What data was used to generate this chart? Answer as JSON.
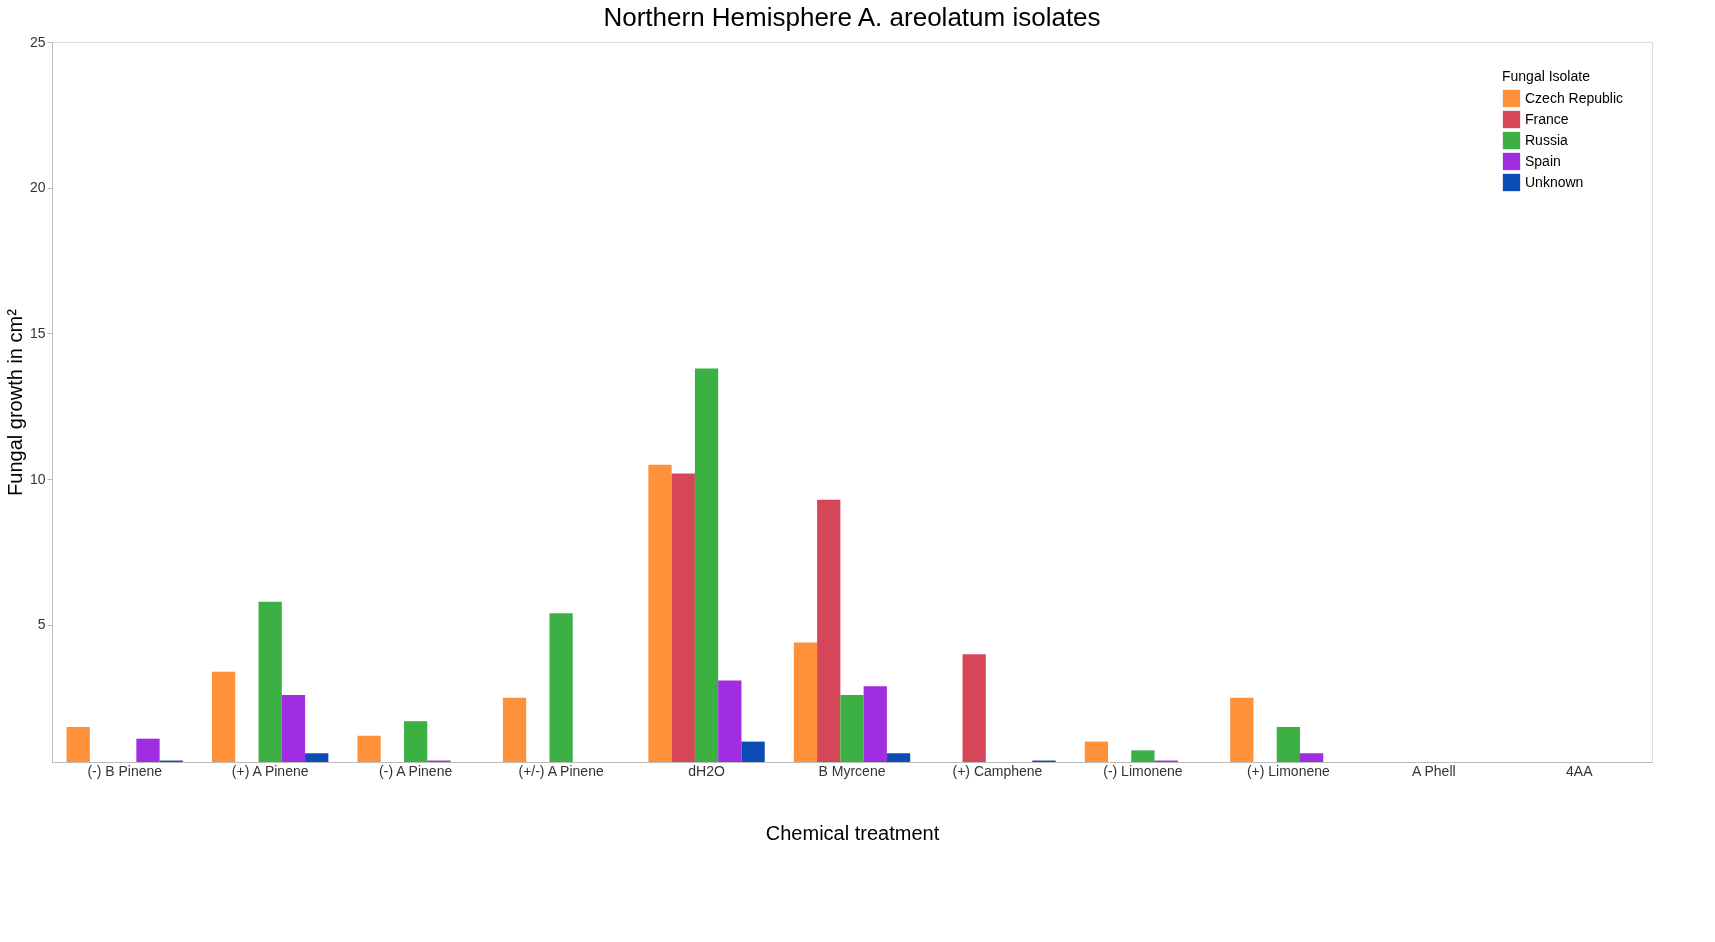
{
  "chart_data": {
    "type": "bar",
    "title": "Northern Hemisphere A. areolatum isolates",
    "xlabel": "Chemical treatment",
    "ylabel": "Fungal growth in cm²",
    "legend_title": "Fungal Isolate",
    "legend": "top right",
    "grid": false,
    "categories": [
      "(-) B Pinene",
      "(+) A Pinene",
      "(-) A Pinene",
      "(+/-) A Pinene",
      "dH2O",
      "B Myrcene",
      "(+) Camphene",
      "(-) Limonene",
      "(+) Limonene",
      "A Phell",
      "4AA"
    ],
    "ylim": [
      0.3,
      25
    ],
    "yticks": [
      5,
      10,
      15,
      20,
      25
    ],
    "series": [
      {
        "name": "Czech Republic",
        "color": "#ff913a",
        "values": [
          1.5,
          3.4,
          1.2,
          2.5,
          10.5,
          4.4,
          null,
          1.0,
          2.5,
          null,
          null
        ]
      },
      {
        "name": "France",
        "color": "#d44658",
        "values": [
          null,
          null,
          null,
          null,
          10.2,
          9.3,
          4.0,
          null,
          null,
          null,
          null
        ]
      },
      {
        "name": "Russia",
        "color": "#3cb043",
        "values": [
          null,
          5.8,
          1.7,
          5.4,
          13.8,
          2.6,
          null,
          0.7,
          1.5,
          null,
          null
        ]
      },
      {
        "name": "Spain",
        "color": "#a02de0",
        "values": [
          1.1,
          2.6,
          0.35,
          null,
          3.1,
          2.9,
          null,
          0.35,
          0.6,
          null,
          null
        ]
      },
      {
        "name": "Unknown",
        "color": "#0a4db5",
        "values": [
          0.35,
          0.6,
          null,
          null,
          1.0,
          0.6,
          0.35,
          null,
          null,
          null,
          null
        ]
      }
    ]
  }
}
